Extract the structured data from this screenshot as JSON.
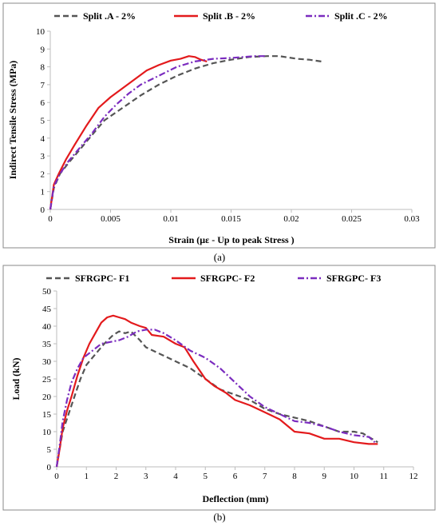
{
  "chart_data": [
    {
      "type": "line",
      "caption": "(a)",
      "xlabel": "Strain (με - Up to peak Stress )",
      "ylabel": "Indirect Tensile Stress (MPa)",
      "xlim": [
        0,
        0.03
      ],
      "ylim": [
        0,
        10
      ],
      "x_ticks": [
        "0",
        "0.005",
        "0.01",
        "0.015",
        "0.02",
        "0.025",
        "0.03"
      ],
      "y_ticks": [
        "0",
        "1",
        "2",
        "3",
        "4",
        "5",
        "6",
        "7",
        "8",
        "9",
        "10"
      ],
      "grid": false,
      "legend_position": "top",
      "series": [
        {
          "name": "Split .A - 2%",
          "color": "#555555",
          "dash": "dashed",
          "points": [
            [
              0,
              0
            ],
            [
              0.0003,
              1.2
            ],
            [
              0.0008,
              2.0
            ],
            [
              0.0015,
              2.6
            ],
            [
              0.0025,
              3.4
            ],
            [
              0.0035,
              4.2
            ],
            [
              0.0045,
              5.0
            ],
            [
              0.006,
              5.7
            ],
            [
              0.0075,
              6.4
            ],
            [
              0.009,
              7.0
            ],
            [
              0.0105,
              7.5
            ],
            [
              0.012,
              7.9
            ],
            [
              0.0135,
              8.2
            ],
            [
              0.015,
              8.4
            ],
            [
              0.0165,
              8.55
            ],
            [
              0.018,
              8.6
            ],
            [
              0.019,
              8.6
            ],
            [
              0.0205,
              8.45
            ],
            [
              0.0215,
              8.4
            ],
            [
              0.0225,
              8.3
            ]
          ]
        },
        {
          "name": "Split .B - 2%",
          "color": "#e31a1c",
          "dash": "solid",
          "points": [
            [
              0,
              0
            ],
            [
              0.0003,
              1.4
            ],
            [
              0.0007,
              2.0
            ],
            [
              0.0013,
              2.8
            ],
            [
              0.002,
              3.6
            ],
            [
              0.003,
              4.7
            ],
            [
              0.004,
              5.7
            ],
            [
              0.005,
              6.3
            ],
            [
              0.006,
              6.8
            ],
            [
              0.007,
              7.3
            ],
            [
              0.008,
              7.8
            ],
            [
              0.009,
              8.1
            ],
            [
              0.01,
              8.35
            ],
            [
              0.0108,
              8.45
            ],
            [
              0.0115,
              8.6
            ],
            [
              0.012,
              8.55
            ],
            [
              0.0125,
              8.4
            ],
            [
              0.013,
              8.3
            ]
          ]
        },
        {
          "name": "Split .C - 2%",
          "color": "#7b2cbf",
          "dash": "dashdot",
          "points": [
            [
              0,
              0
            ],
            [
              0.0003,
              1.3
            ],
            [
              0.0008,
              2.0
            ],
            [
              0.0015,
              2.7
            ],
            [
              0.0025,
              3.5
            ],
            [
              0.0035,
              4.3
            ],
            [
              0.0045,
              5.2
            ],
            [
              0.0055,
              5.9
            ],
            [
              0.0065,
              6.5
            ],
            [
              0.0075,
              7.0
            ],
            [
              0.009,
              7.5
            ],
            [
              0.0105,
              8.0
            ],
            [
              0.012,
              8.3
            ],
            [
              0.0135,
              8.45
            ],
            [
              0.015,
              8.5
            ],
            [
              0.016,
              8.55
            ],
            [
              0.017,
              8.6
            ],
            [
              0.0178,
              8.6
            ]
          ]
        }
      ]
    },
    {
      "type": "line",
      "caption": "(b)",
      "xlabel": "Deflection (mm)",
      "ylabel": "Load (kN)",
      "xlim": [
        0,
        12
      ],
      "ylim": [
        0,
        50
      ],
      "x_ticks": [
        "0",
        "1",
        "2",
        "3",
        "4",
        "5",
        "6",
        "7",
        "8",
        "9",
        "10",
        "11",
        "12"
      ],
      "y_ticks": [
        "0",
        "5",
        "10",
        "15",
        "20",
        "25",
        "30",
        "35",
        "40",
        "45",
        "50"
      ],
      "grid": false,
      "legend_position": "top",
      "series": [
        {
          "name": "SFRGPC- F1",
          "color": "#555555",
          "dash": "dashed",
          "points": [
            [
              0,
              0
            ],
            [
              0.1,
              5
            ],
            [
              0.2,
              10
            ],
            [
              0.4,
              15
            ],
            [
              0.6,
              20
            ],
            [
              0.8,
              25
            ],
            [
              1.0,
              29
            ],
            [
              1.3,
              32
            ],
            [
              1.6,
              35
            ],
            [
              1.9,
              37.5
            ],
            [
              2.1,
              38.5
            ],
            [
              2.3,
              38
            ],
            [
              2.5,
              38.5
            ],
            [
              2.8,
              36
            ],
            [
              3.0,
              34
            ],
            [
              3.5,
              32
            ],
            [
              4.0,
              30
            ],
            [
              4.5,
              28
            ],
            [
              5.0,
              25
            ],
            [
              5.5,
              22
            ],
            [
              6.0,
              20.5
            ],
            [
              6.5,
              19
            ],
            [
              7.0,
              16.5
            ],
            [
              7.5,
              15
            ],
            [
              8.0,
              14
            ],
            [
              8.5,
              13
            ],
            [
              9.0,
              11.5
            ],
            [
              9.5,
              10
            ],
            [
              10.0,
              10
            ],
            [
              10.3,
              9.5
            ],
            [
              10.6,
              8
            ],
            [
              10.8,
              7
            ]
          ]
        },
        {
          "name": "SFRGPC- F2",
          "color": "#e31a1c",
          "dash": "solid",
          "points": [
            [
              0,
              0
            ],
            [
              0.1,
              5
            ],
            [
              0.2,
              11
            ],
            [
              0.35,
              16
            ],
            [
              0.5,
              20
            ],
            [
              0.7,
              26
            ],
            [
              0.9,
              31
            ],
            [
              1.1,
              35
            ],
            [
              1.3,
              38
            ],
            [
              1.5,
              41
            ],
            [
              1.7,
              42.5
            ],
            [
              1.9,
              43
            ],
            [
              2.1,
              42.5
            ],
            [
              2.3,
              42
            ],
            [
              2.5,
              41
            ],
            [
              2.8,
              40
            ],
            [
              3.0,
              39.5
            ],
            [
              3.2,
              37.5
            ],
            [
              3.6,
              37
            ],
            [
              4.0,
              35
            ],
            [
              4.3,
              34
            ],
            [
              4.6,
              30
            ],
            [
              5.0,
              25
            ],
            [
              5.3,
              23
            ],
            [
              5.7,
              21
            ],
            [
              6.0,
              19
            ],
            [
              6.5,
              17.5
            ],
            [
              7.0,
              15.5
            ],
            [
              7.5,
              13.5
            ],
            [
              8.0,
              10
            ],
            [
              8.5,
              9.5
            ],
            [
              9.0,
              8
            ],
            [
              9.5,
              8
            ],
            [
              10.0,
              7
            ],
            [
              10.5,
              6.5
            ],
            [
              10.8,
              6.5
            ]
          ]
        },
        {
          "name": "SFRGPC- F3",
          "color": "#7b2cbf",
          "dash": "dashdot",
          "points": [
            [
              0,
              0
            ],
            [
              0.1,
              6
            ],
            [
              0.2,
              13
            ],
            [
              0.35,
              19
            ],
            [
              0.5,
              24
            ],
            [
              0.7,
              28
            ],
            [
              0.9,
              31
            ],
            [
              1.2,
              33
            ],
            [
              1.5,
              35
            ],
            [
              1.8,
              35.5
            ],
            [
              2.1,
              36
            ],
            [
              2.4,
              37
            ],
            [
              2.7,
              38.5
            ],
            [
              3.0,
              39
            ],
            [
              3.3,
              39
            ],
            [
              3.6,
              38
            ],
            [
              4.0,
              36
            ],
            [
              4.5,
              33
            ],
            [
              5.0,
              31
            ],
            [
              5.5,
              28
            ],
            [
              6.0,
              24
            ],
            [
              6.5,
              20
            ],
            [
              7.0,
              17
            ],
            [
              7.5,
              15
            ],
            [
              8.0,
              13
            ],
            [
              8.5,
              12.5
            ],
            [
              9.0,
              11.5
            ],
            [
              9.5,
              10
            ],
            [
              10.0,
              9
            ],
            [
              10.5,
              8.5
            ],
            [
              10.7,
              7
            ]
          ]
        }
      ]
    }
  ]
}
